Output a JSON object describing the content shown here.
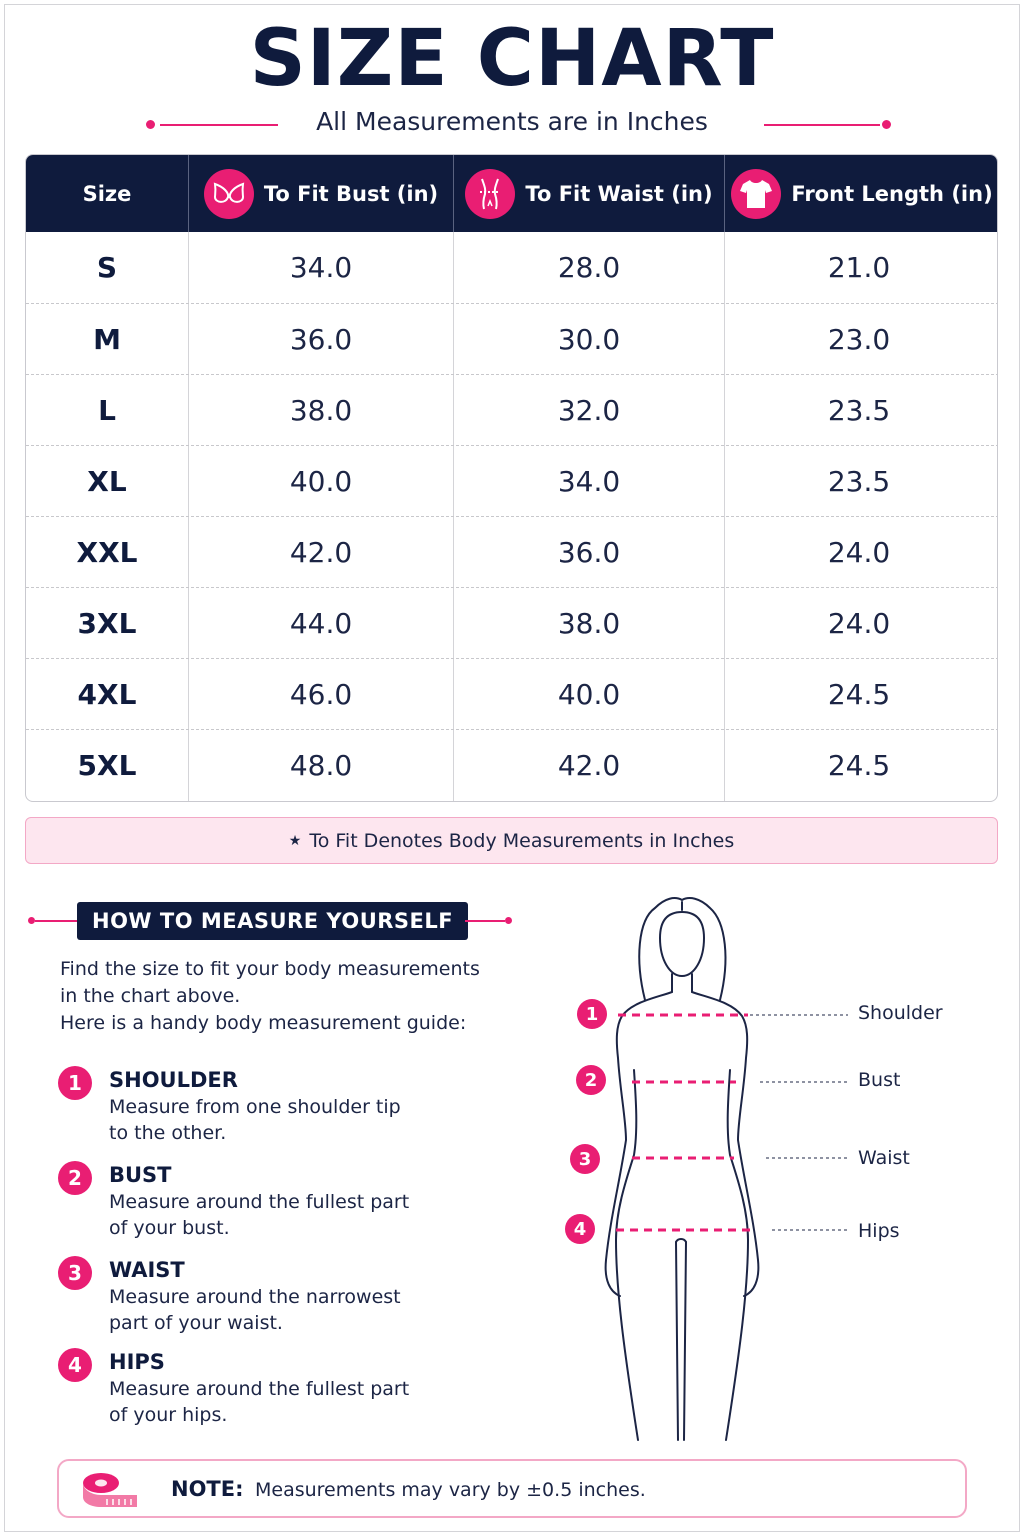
{
  "title": "SIZE CHART",
  "subtitle": "All Measurements are in Inches",
  "colors": {
    "navy": "#0f1b3d",
    "accent": "#e91e73",
    "pink_bg": "#fde6ef"
  },
  "table": {
    "headers": [
      {
        "label": "Size",
        "icon": ""
      },
      {
        "label": "To Fit Bust (in)",
        "icon": "bra-icon"
      },
      {
        "label": "To Fit Waist (in)",
        "icon": "waist-icon"
      },
      {
        "label": "Front Length (in)",
        "icon": "tshirt-icon"
      }
    ],
    "rows": [
      {
        "size": "S",
        "bust": "34.0",
        "waist": "28.0",
        "length": "21.0"
      },
      {
        "size": "M",
        "bust": "36.0",
        "waist": "30.0",
        "length": "23.0"
      },
      {
        "size": "L",
        "bust": "38.0",
        "waist": "32.0",
        "length": "23.5"
      },
      {
        "size": "XL",
        "bust": "40.0",
        "waist": "34.0",
        "length": "23.5"
      },
      {
        "size": "XXL",
        "bust": "42.0",
        "waist": "36.0",
        "length": "24.0"
      },
      {
        "size": "3XL",
        "bust": "44.0",
        "waist": "38.0",
        "length": "24.0"
      },
      {
        "size": "4XL",
        "bust": "46.0",
        "waist": "40.0",
        "length": "24.5"
      },
      {
        "size": "5XL",
        "bust": "48.0",
        "waist": "42.0",
        "length": "24.5"
      }
    ]
  },
  "footnote": {
    "star": "★",
    "text": "To Fit Denotes Body Measurements in Inches"
  },
  "howto": {
    "heading": "HOW TO MEASURE YOURSELF",
    "intro_1": "Find the size to fit your body measurements",
    "intro_2": "in the chart above.",
    "intro_3": "Here is a handy body measurement guide:",
    "steps": [
      {
        "num": "1",
        "title": "SHOULDER",
        "desc_1": "Measure from one shoulder tip",
        "desc_2": "to the other."
      },
      {
        "num": "2",
        "title": "BUST",
        "desc_1": "Measure around the fullest part",
        "desc_2": "of your bust."
      },
      {
        "num": "3",
        "title": "WAIST",
        "desc_1": "Measure around the narrowest",
        "desc_2": "part of your waist."
      },
      {
        "num": "4",
        "title": "HIPS",
        "desc_1": "Measure around the fullest part",
        "desc_2": "of your hips."
      }
    ]
  },
  "figure": {
    "labels": [
      {
        "num": "1",
        "text": "Shoulder"
      },
      {
        "num": "2",
        "text": "Bust"
      },
      {
        "num": "3",
        "text": "Waist"
      },
      {
        "num": "4",
        "text": "Hips"
      }
    ]
  },
  "note": {
    "label": "NOTE:",
    "text": "Measurements may vary by ±0.5 inches."
  }
}
